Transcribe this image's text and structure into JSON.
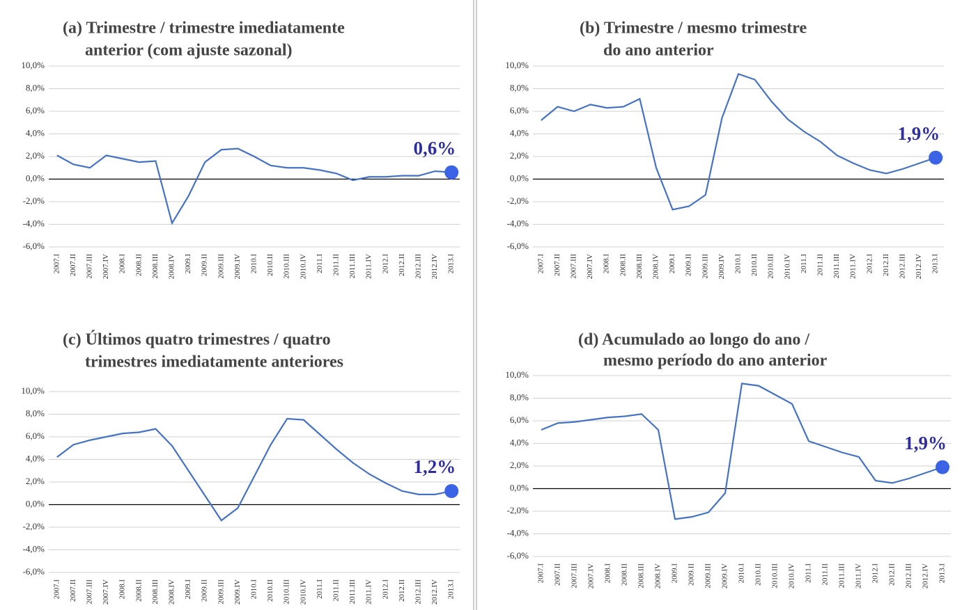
{
  "chart_data": [
    {
      "type": "line",
      "title": [
        "(a) Trimestre / trimestre imediatamente",
        "anterior (com ajuste sazonal)"
      ],
      "categories": [
        "2007.I",
        "2007.II",
        "2007.III",
        "2007.IV",
        "2008.I",
        "2008.II",
        "2008.III",
        "2008.IV",
        "2009.I",
        "2009.II",
        "2009.III",
        "2009.IV",
        "2010.I",
        "2010.II",
        "2010.III",
        "2010.IV",
        "2011.I",
        "2011.II",
        "2011.III",
        "2011.IV",
        "2012.I",
        "2012.II",
        "2012.III",
        "2012.IV",
        "2013.I"
      ],
      "values": [
        2.1,
        1.3,
        1.0,
        2.1,
        1.8,
        1.5,
        1.6,
        -3.9,
        -1.5,
        1.5,
        2.6,
        2.7,
        2.0,
        1.2,
        1.0,
        1.0,
        0.8,
        0.5,
        -0.1,
        0.2,
        0.2,
        0.3,
        0.3,
        0.7,
        0.6
      ],
      "annotation": "0,6%",
      "color": "#4472c4",
      "ylim": [
        -6,
        10
      ],
      "yticks": [
        {
          "value": -6,
          "label": "-6,0%"
        },
        {
          "value": -4,
          "label": "-4,0%"
        },
        {
          "value": -2,
          "label": "-2,0%"
        },
        {
          "value": 0,
          "label": "0,0%"
        },
        {
          "value": 2,
          "label": "2,0%"
        },
        {
          "value": 4,
          "label": "4,0%"
        },
        {
          "value": 6,
          "label": "6,0%"
        },
        {
          "value": 8,
          "label": "8,0%"
        },
        {
          "value": 10,
          "label": "10,0%"
        }
      ],
      "grid": true
    },
    {
      "type": "line",
      "title": [
        "(b) Trimestre / mesmo trimestre",
        "do ano anterior"
      ],
      "categories": [
        "2007.I",
        "2007.II",
        "2007.III",
        "2007.IV",
        "2008.I",
        "2008.II",
        "2008.III",
        "2008.IV",
        "2009.I",
        "2009.II",
        "2009.III",
        "2009.IV",
        "2010.I",
        "2010.II",
        "2010.III",
        "2010.IV",
        "2011.I",
        "2011.II",
        "2011.III",
        "2011.IV",
        "2012.I",
        "2012.II",
        "2012.III",
        "2012.IV",
        "2013.I"
      ],
      "values": [
        5.2,
        6.4,
        6.0,
        6.6,
        6.3,
        6.4,
        7.1,
        1.0,
        -2.7,
        -2.4,
        -1.4,
        5.4,
        9.3,
        8.8,
        6.9,
        5.3,
        4.2,
        3.3,
        2.1,
        1.4,
        0.8,
        0.5,
        0.9,
        1.4,
        1.9
      ],
      "annotation": "1,9%",
      "color": "#4472c4",
      "ylim": [
        -6,
        10
      ],
      "yticks": [
        {
          "value": -6,
          "label": "-6,0%"
        },
        {
          "value": -4,
          "label": "-4,0%"
        },
        {
          "value": -2,
          "label": "-2,0%"
        },
        {
          "value": 0,
          "label": "0,0%"
        },
        {
          "value": 2,
          "label": "2,0%"
        },
        {
          "value": 4,
          "label": "4,0%"
        },
        {
          "value": 6,
          "label": "6,0%"
        },
        {
          "value": 8,
          "label": "8,0%"
        },
        {
          "value": 10,
          "label": "10,0%"
        }
      ],
      "grid": true
    },
    {
      "type": "line",
      "title": [
        "(c) Últimos quatro trimestres / quatro",
        "trimestres imediatamente anteriores"
      ],
      "categories": [
        "2007.I",
        "2007.II",
        "2007.III",
        "2007.IV",
        "2008.I",
        "2008.II",
        "2008.III",
        "2008.IV",
        "2009.I",
        "2009.II",
        "2009.III",
        "2009.IV",
        "2010.I",
        "2010.II",
        "2010.III",
        "2010.IV",
        "2011.I",
        "2011.II",
        "2011.III",
        "2011.IV",
        "2012.I",
        "2012.II",
        "2012.III",
        "2012.IV",
        "2013.I"
      ],
      "values": [
        4.2,
        5.3,
        5.7,
        6.0,
        6.3,
        6.4,
        6.7,
        5.2,
        3.0,
        0.8,
        -1.4,
        -0.3,
        2.5,
        5.3,
        7.6,
        7.5,
        6.2,
        4.9,
        3.7,
        2.7,
        1.9,
        1.2,
        0.9,
        0.9,
        1.2
      ],
      "annotation": "1,2%",
      "color": "#4472c4",
      "ylim": [
        -6,
        10
      ],
      "yticks": [
        {
          "value": -6,
          "label": "-6,0%"
        },
        {
          "value": -4,
          "label": "-4,0%"
        },
        {
          "value": -2,
          "label": "-2,0%"
        },
        {
          "value": 0,
          "label": "0,0%"
        },
        {
          "value": 2,
          "label": "2,0%"
        },
        {
          "value": 4,
          "label": "4,0%"
        },
        {
          "value": 6,
          "label": "6,0%"
        },
        {
          "value": 8,
          "label": "8,0%"
        },
        {
          "value": 10,
          "label": "10,0%"
        }
      ],
      "grid": true
    },
    {
      "type": "line",
      "title": [
        "(d) Acumulado ao longo do ano /",
        "mesmo período do ano anterior"
      ],
      "categories": [
        "2007.I",
        "2007.II",
        "2007.III",
        "2007.IV",
        "2008.I",
        "2008.II",
        "2008.III",
        "2008.IV",
        "2009.I",
        "2009.II",
        "2009.III",
        "2009.IV",
        "2010.I",
        "2010.II",
        "2010.III",
        "2010.IV",
        "2011.I",
        "2011.II",
        "2011.III",
        "2011.IV",
        "2012.I",
        "2012.II",
        "2012.III",
        "2012.IV",
        "2013.I"
      ],
      "values": [
        5.2,
        5.8,
        5.9,
        6.1,
        6.3,
        6.4,
        6.6,
        5.2,
        -2.7,
        -2.5,
        -2.1,
        -0.4,
        9.3,
        9.1,
        8.3,
        7.5,
        4.2,
        3.7,
        3.2,
        2.8,
        0.7,
        0.5,
        0.9,
        1.4,
        1.9
      ],
      "annotation": "1,9%",
      "color": "#4472c4",
      "ylim": [
        -6,
        10
      ],
      "yticks": [
        {
          "value": -6,
          "label": "-6,0%"
        },
        {
          "value": -4,
          "label": "-4,0%"
        },
        {
          "value": -2,
          "label": "-2,0%"
        },
        {
          "value": 0,
          "label": "0,0%"
        },
        {
          "value": 2,
          "label": "2,0%"
        },
        {
          "value": 4,
          "label": "4,0%"
        },
        {
          "value": 6,
          "label": "6,0%"
        },
        {
          "value": 8,
          "label": "8,0%"
        },
        {
          "value": 10,
          "label": "10,0%"
        }
      ],
      "grid": true
    }
  ]
}
